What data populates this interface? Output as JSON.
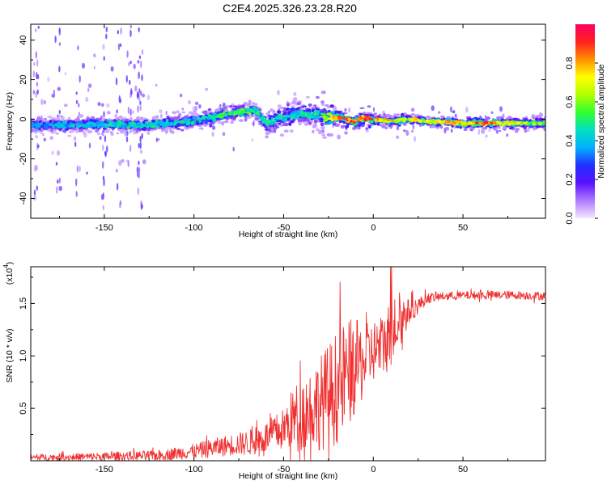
{
  "title": "C2E4.2025.326.23.28.R20",
  "chart_data": [
    {
      "type": "heatmap",
      "xlabel": "Height of straight line (km)",
      "ylabel": "Frequency (Hz)",
      "xlim": [
        -191,
        96
      ],
      "ylim": [
        -50,
        48
      ],
      "xticks": [
        -150,
        -100,
        -50,
        0,
        50
      ],
      "yticks": [
        -40,
        -20,
        0,
        20,
        40
      ],
      "xtick_labels": [
        "-150",
        "-100",
        "-50",
        "0",
        "50"
      ],
      "ytick_labels": [
        "-40",
        "-20",
        "0",
        "20",
        "40"
      ],
      "colorbar": {
        "label": "Normalized spectral amplitude",
        "range": [
          0,
          1
        ],
        "ticks": [
          0.0,
          0.2,
          0.4,
          0.6,
          0.8
        ],
        "tick_labels": [
          "0.0",
          "0.2",
          "0.4",
          "0.6",
          "0.8"
        ],
        "colormap": [
          "#f4e8ff",
          "#b07aff",
          "#5a10ff",
          "#2030ff",
          "#00b0ff",
          "#00e0c0",
          "#30ff30",
          "#b0ff00",
          "#ffff00",
          "#ff9000",
          "#ff2020",
          "#ff0060"
        ]
      },
      "ridge": {
        "x": [
          -191,
          -170,
          -150,
          -130,
          -110,
          -95,
          -80,
          -66,
          -60,
          -50,
          -40,
          -30,
          -24,
          -20,
          -15,
          -10,
          -5,
          0,
          10,
          20,
          30,
          50,
          70,
          96
        ],
        "y": [
          -3,
          -3,
          -2.5,
          -3,
          -2,
          0,
          3,
          5,
          -2,
          1,
          3,
          2,
          1,
          1,
          0,
          -1,
          1,
          0,
          -1,
          0,
          -1,
          -2,
          -2,
          -2
        ]
      },
      "ridge_amplitude": {
        "x": [
          -191,
          -150,
          -100,
          -70,
          -50,
          -30,
          -20,
          -10,
          0,
          10,
          30,
          60,
          96
        ],
        "v": [
          0.35,
          0.45,
          0.5,
          0.55,
          0.45,
          0.5,
          0.8,
          0.95,
          0.9,
          0.75,
          0.7,
          0.92,
          0.6
        ]
      }
    },
    {
      "type": "line",
      "xlabel": "Height of straight line (km)",
      "ylabel": "SNR (10 * v/v)",
      "y_multiplier_label": "(x10",
      "y_multiplier_exponent": "4",
      "y_multiplier_close": ")",
      "xlim": [
        -191,
        96
      ],
      "ylim": [
        0,
        1.85
      ],
      "y_unit_scale": 10000,
      "xticks": [
        -150,
        -100,
        -50,
        0,
        50
      ],
      "yticks": [
        0.5,
        1.0,
        1.5
      ],
      "xtick_labels": [
        "-150",
        "-100",
        "-50",
        "0",
        "50"
      ],
      "ytick_labels": [
        "0.5",
        "1.0",
        "1.5"
      ],
      "color": "#f03030",
      "envelope": {
        "x": [
          -191,
          -150,
          -120,
          -100,
          -90,
          -80,
          -70,
          -60,
          -50,
          -45,
          -40,
          -35,
          -30,
          -25,
          -20,
          -15,
          -10,
          -5,
          0,
          5,
          10,
          15,
          20,
          25,
          30,
          40,
          60,
          80,
          96
        ],
        "mean": [
          0.03,
          0.04,
          0.05,
          0.09,
          0.12,
          0.15,
          0.17,
          0.22,
          0.3,
          0.4,
          0.45,
          0.5,
          0.55,
          0.62,
          0.7,
          0.8,
          0.9,
          0.95,
          1.05,
          1.1,
          1.22,
          1.35,
          1.42,
          1.48,
          1.55,
          1.57,
          1.58,
          1.58,
          1.57
        ],
        "spread": [
          0.03,
          0.04,
          0.05,
          0.07,
          0.09,
          0.1,
          0.12,
          0.15,
          0.2,
          0.3,
          0.35,
          0.4,
          0.45,
          0.5,
          0.55,
          0.55,
          0.45,
          0.35,
          0.3,
          0.3,
          0.35,
          0.25,
          0.12,
          0.08,
          0.05,
          0.04,
          0.04,
          0.04,
          0.04
        ]
      }
    }
  ]
}
